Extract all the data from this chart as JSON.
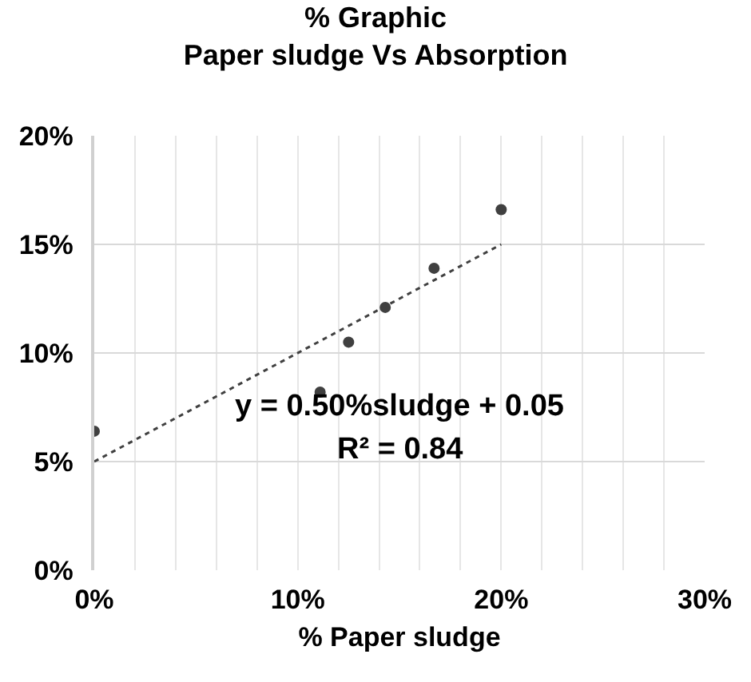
{
  "chart_data": {
    "type": "scatter",
    "title": "% Graphic\nPaper sludge Vs Absorption",
    "xlabel": "% Paper sludge",
    "series": [
      {
        "color": "#404040",
        "x": [
          0,
          11.1,
          12.5,
          14.3,
          16.7,
          20.0
        ],
        "values": [
          6.4,
          8.2,
          10.5,
          12.1,
          13.9,
          16.6
        ],
        "marker": "circle"
      },
      {
        "type": "line",
        "color": "#404040",
        "x": [
          0,
          20
        ],
        "values": [
          5,
          15
        ],
        "line_style": "dotted",
        "marker": "none"
      }
    ],
    "xlim": [
      0,
      30
    ],
    "xticks": [
      {
        "value": 0,
        "label": "0%"
      },
      {
        "value": 2,
        "label": null
      },
      {
        "value": 4,
        "label": null
      },
      {
        "value": 6,
        "label": null
      },
      {
        "value": 8,
        "label": null
      },
      {
        "value": 10,
        "label": "10%"
      },
      {
        "value": 12,
        "label": null
      },
      {
        "value": 14,
        "label": null
      },
      {
        "value": 16,
        "label": null
      },
      {
        "value": 18,
        "label": null
      },
      {
        "value": 20,
        "label": "20%"
      },
      {
        "value": 22,
        "label": null
      },
      {
        "value": 24,
        "label": null
      },
      {
        "value": 26,
        "label": null
      },
      {
        "value": 28,
        "label": null
      },
      {
        "value": 30,
        "label": "30%"
      }
    ],
    "ylim": [
      0,
      20
    ],
    "yticks": [
      {
        "value": 0,
        "label": "0%"
      },
      {
        "value": 5,
        "label": "5%"
      },
      {
        "value": 10,
        "label": "10%"
      },
      {
        "value": 15,
        "label": "15%"
      },
      {
        "value": 20,
        "label": "20%"
      }
    ],
    "annotations": [
      "y = 0.50%sludge + 0.05",
      "R² = 0.84"
    ],
    "grid": true
  }
}
